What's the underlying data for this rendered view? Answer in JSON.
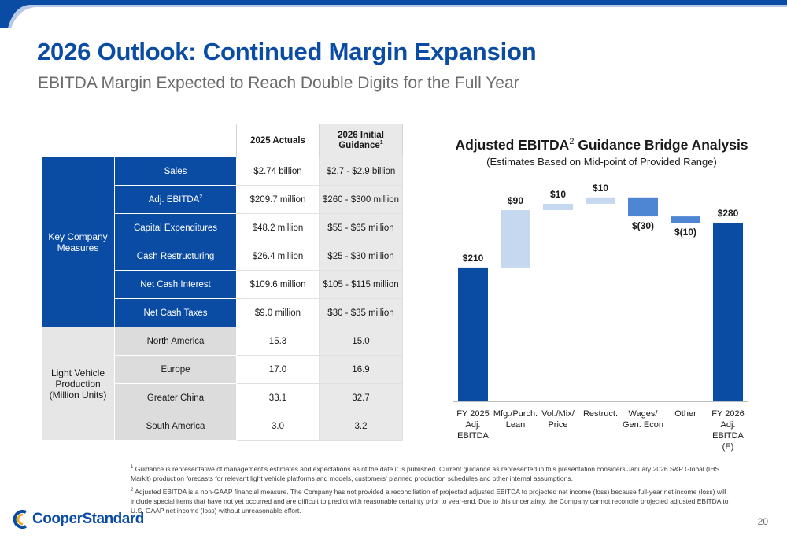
{
  "slide": {
    "title": "2026 Outlook: Continued Margin Expansion",
    "subtitle": "EBITDA Margin Expected to Reach Double Digits for the Full Year",
    "page_number": "20",
    "logo_text": "CooperStandard"
  },
  "table": {
    "col_actuals": "2025 Actuals",
    "col_guidance": "2026 Initial Guidance",
    "col_guidance_sup": "1",
    "groups": [
      {
        "name": "Key Company Measures",
        "rows": [
          {
            "label": "Sales",
            "sup": "",
            "actual": "$2.74 billion",
            "guidance": "$2.7 - $2.9 billion"
          },
          {
            "label": "Adj. EBITDA",
            "sup": "2",
            "actual": "$209.7 million",
            "guidance": "$260 - $300 million"
          },
          {
            "label": "Capital Expenditures",
            "sup": "",
            "actual": "$48.2 million",
            "guidance": "$55 - $65 million"
          },
          {
            "label": "Cash Restructuring",
            "sup": "",
            "actual": "$26.4 million",
            "guidance": "$25 - $30 million"
          },
          {
            "label": "Net Cash Interest",
            "sup": "",
            "actual": "$109.6 million",
            "guidance": "$105 - $115 million"
          },
          {
            "label": "Net Cash Taxes",
            "sup": "",
            "actual": "$9.0 million",
            "guidance": "$30 - $35 million"
          }
        ]
      },
      {
        "name": "Light Vehicle Production (Million Units)",
        "rows": [
          {
            "label": "North America",
            "sup": "",
            "actual": "15.3",
            "guidance": "15.0"
          },
          {
            "label": "Europe",
            "sup": "",
            "actual": "17.0",
            "guidance": "16.9"
          },
          {
            "label": "Greater China",
            "sup": "",
            "actual": "33.1",
            "guidance": "32.7"
          },
          {
            "label": "South America",
            "sup": "",
            "actual": "3.0",
            "guidance": "3.2"
          }
        ]
      }
    ]
  },
  "chart_data": {
    "type": "bar",
    "subtype": "waterfall",
    "title": "Adjusted EBITDA",
    "title_sup": "2",
    "title_suffix": " Guidance Bridge Analysis",
    "subtitle": "(Estimates Based on Mid-point of Provided Range)",
    "categories": [
      "FY 2025 Adj. EBITDA",
      "Mfg./Purch. Lean",
      "Vol./Mix/ Price",
      "Restruct.",
      "Wages/ Gen. Econ",
      "Other",
      "FY 2026 Adj. EBITDA (E)"
    ],
    "category_lines": [
      [
        "FY 2025",
        "Adj.",
        "EBITDA"
      ],
      [
        "Mfg./Purch.",
        "Lean"
      ],
      [
        "Vol./Mix/",
        "Price"
      ],
      [
        "Restruct."
      ],
      [
        "Wages/",
        "Gen. Econ"
      ],
      [
        "Other"
      ],
      [
        "FY 2026",
        "Adj.",
        "EBITDA",
        "(E)"
      ]
    ],
    "values": [
      210,
      90,
      10,
      10,
      -30,
      -10,
      280
    ],
    "kinds": [
      "total",
      "delta",
      "delta",
      "delta",
      "delta",
      "delta",
      "total"
    ],
    "data_labels": [
      "$210",
      "$90",
      "$10",
      "$10",
      "$(30)",
      "$(10)",
      "$280"
    ],
    "colors": {
      "total": "#0a4ca3",
      "increase": "#c5d8f0",
      "decrease": "#4f86d3"
    }
  },
  "footnotes": [
    {
      "sup": "1",
      "text": "Guidance is representative of management's estimates and expectations as of the date it is published. Current guidance as represented in this presentation considers January 2026 S&P Global (IHS Markit) production forecasts for relevant light vehicle platforms and models, customers' planned production schedules and other internal assumptions."
    },
    {
      "sup": "2",
      "text": "Adjusted EBITDA is a non-GAAP financial measure. The Company has not provided a reconciliation of projected adjusted EBITDA to projected net income (loss) because full-year net income (loss) will include special items that have not yet occurred and are difficult to predict with reasonable certainty prior to year-end. Due to this uncertainty, the Company cannot reconcile projected adjusted EBITDA to U.S. GAAP net income (loss) without unreasonable effort."
    }
  ],
  "colors": {
    "brand_blue": "#0a4ca3",
    "subtitle_grey": "#6b6b6b"
  }
}
